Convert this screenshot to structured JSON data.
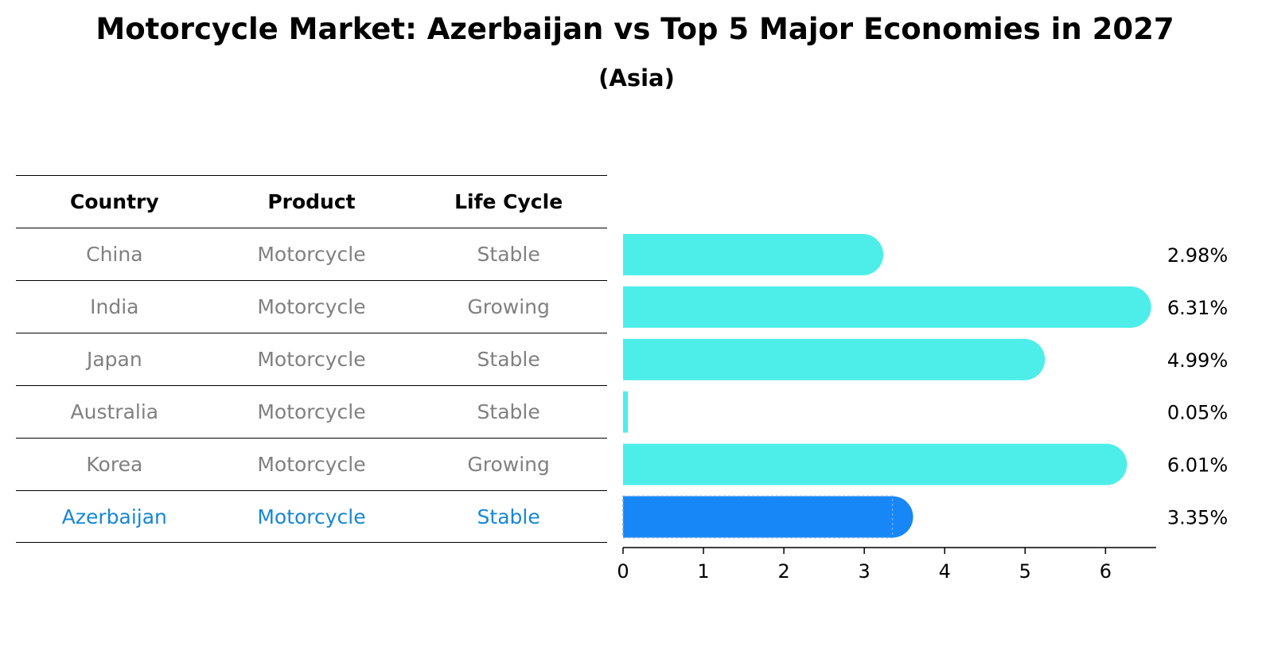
{
  "title": "Motorcycle Market: Azerbaijan vs Top 5 Major Economies in 2027",
  "subtitle": "(Asia)",
  "table": {
    "headers": [
      "Country",
      "Product",
      "Life Cycle"
    ],
    "rows": [
      {
        "country": "China",
        "product": "Motorcycle",
        "life_cycle": "Stable"
      },
      {
        "country": "India",
        "product": "Motorcycle",
        "life_cycle": "Growing"
      },
      {
        "country": "Japan",
        "product": "Motorcycle",
        "life_cycle": "Stable"
      },
      {
        "country": "Australia",
        "product": "Motorcycle",
        "life_cycle": "Stable"
      },
      {
        "country": "Korea",
        "product": "Motorcycle",
        "life_cycle": "Growing"
      },
      {
        "country": "Azerbaijan",
        "product": "Motorcycle",
        "life_cycle": "Stable"
      }
    ],
    "highlight_row": "Azerbaijan"
  },
  "colors": {
    "bar": "#4deee9",
    "highlight_bar": "#1787f8",
    "highlight_text": "#1787d6",
    "row_text": "#808080"
  },
  "chart_data": {
    "type": "bar",
    "orientation": "horizontal",
    "categories": [
      "China",
      "India",
      "Japan",
      "Australia",
      "Korea",
      "Azerbaijan"
    ],
    "values": [
      2.98,
      6.31,
      4.99,
      0.05,
      6.01,
      3.35
    ],
    "value_labels": [
      "2.98%",
      "6.31%",
      "4.99%",
      "0.05%",
      "6.01%",
      "3.35%"
    ],
    "highlight": "Azerbaijan",
    "xlim": [
      0,
      6.63
    ],
    "xticks": [
      0,
      1,
      2,
      3,
      4,
      5,
      6
    ],
    "xtick_labels": [
      "0",
      "1",
      "2",
      "3",
      "4",
      "5",
      "6"
    ],
    "grid": false
  }
}
